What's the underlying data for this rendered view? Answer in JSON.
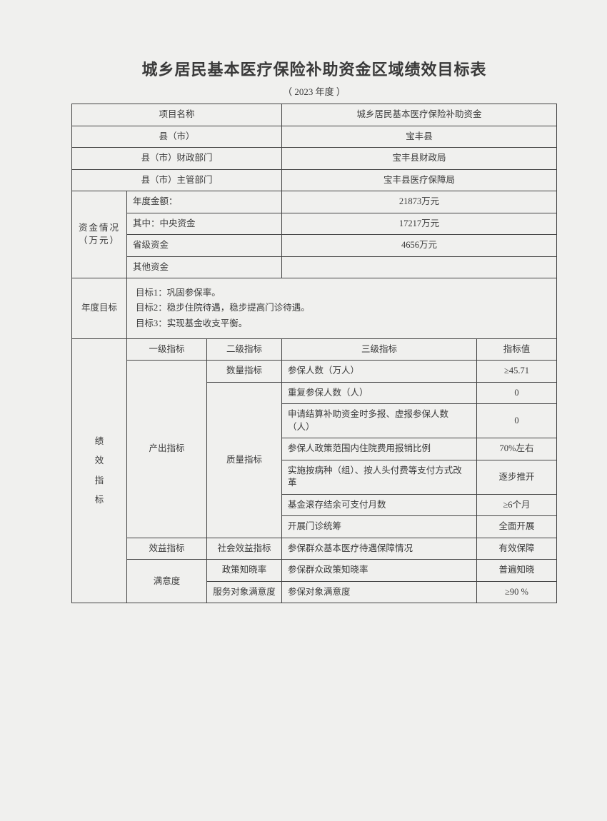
{
  "title": "城乡居民基本医疗保险补助资金区域绩效目标表",
  "subtitle": "（ 2023 年度 ）",
  "header": {
    "project_name_label": "项目名称",
    "project_name_value": "城乡居民基本医疗保险补助资金",
    "county_label": "县（市）",
    "county_value": "宝丰县",
    "finance_dept_label": "县（市）财政部门",
    "finance_dept_value": "宝丰县财政局",
    "admin_dept_label": "县（市）主管部门",
    "admin_dept_value": "宝丰县医疗保障局"
  },
  "funds": {
    "section_label": "资金情况（万元）",
    "annual_label": "年度金额：",
    "annual_value": "21873万元",
    "central_label": "其中：中央资金",
    "central_value": "17217万元",
    "provincial_label": "省级资金",
    "provincial_value": "4656万元",
    "other_label": "其他资金",
    "other_value": ""
  },
  "annual_goal": {
    "label": "年度目标",
    "line1": "目标1：巩固参保率。",
    "line2": "目标2：稳步住院待遇，稳步提高门诊待遇。",
    "line3": "目标3：实现基金收支平衡。"
  },
  "indicators": {
    "section_label": "绩效指标",
    "h_l1": "一级指标",
    "h_l2": "二级指标",
    "h_l3": "三级指标",
    "h_val": "指标值",
    "output_label": "产出指标",
    "qty_label": "数量指标",
    "quality_label": "质量指标",
    "r1_l3": "参保人数（万人）",
    "r1_val": "≥45.71",
    "r2_l3": "重复参保人数（人）",
    "r2_val": "0",
    "r3_l3": "申请结算补助资金时多报、虚报参保人数（人）",
    "r3_val": "0",
    "r4_l3": "参保人政策范围内住院费用报销比例",
    "r4_val": "70%左右",
    "r5_l3": "实施按病种（组）、按人头付费等支付方式改革",
    "r5_val": "逐步推开",
    "r6_l3": "基金滚存结余可支付月数",
    "r6_val": "≥6个月",
    "r7_l3": "开展门诊统筹",
    "r7_val": "全面开展",
    "benefit_label": "效益指标",
    "social_benefit_label": "社会效益指标",
    "r8_l3": "参保群众基本医疗待遇保障情况",
    "r8_val": "有效保障",
    "satisfaction_label": "满意度",
    "policy_aware_label": "政策知晓率",
    "r9_l3": "参保群众政策知晓率",
    "r9_val": "普遍知晓",
    "service_sat_label": "服务对象满意度",
    "r10_l3": "参保对象满意度",
    "r10_val": "≥90 %"
  }
}
